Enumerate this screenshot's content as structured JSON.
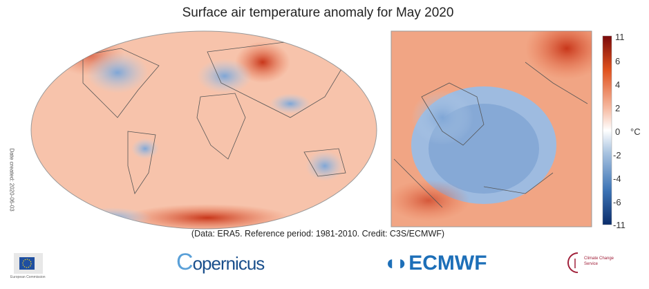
{
  "title": "Surface air temperature anomaly for May 2020",
  "credit": "(Data: ERA5.  Reference period: 1981-2010.  Credit: C3S/ECMWF)",
  "date_created": "Date created: 2020-06-03",
  "colorbar": {
    "unit": "°C",
    "ticks": [
      "11",
      "6",
      "4",
      "2",
      "0",
      "-2",
      "-4",
      "-6",
      "-11"
    ],
    "min_color": "#0b2d6b",
    "zero_color": "#ffffff",
    "max_color": "#7a0a0a"
  },
  "maps": {
    "global": "world-robinson",
    "regional": "europe"
  },
  "logos": {
    "eu": "European Commission",
    "copernicus": "opernicus",
    "copernicus_c": "C",
    "ecmwf": "ECMWF",
    "c3s": "Climate Change Service"
  }
}
